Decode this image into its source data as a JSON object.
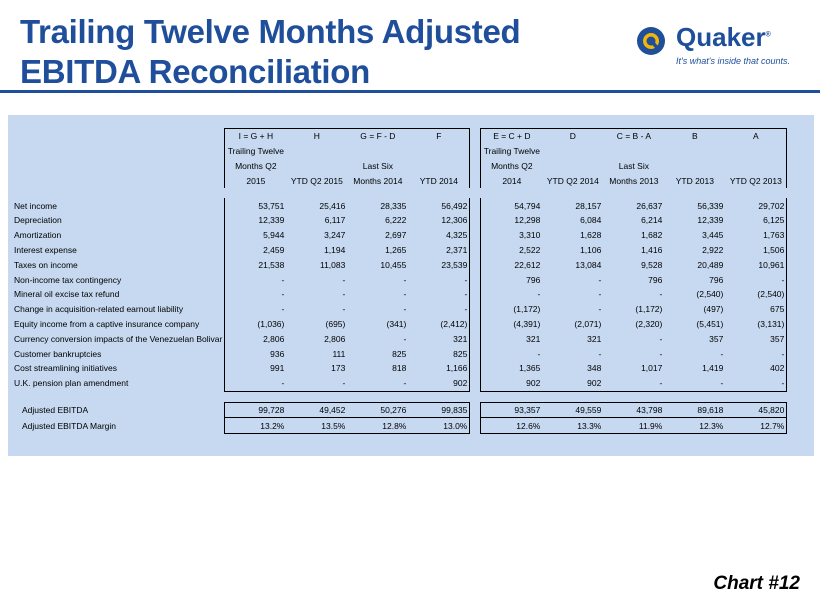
{
  "title": {
    "line1": "Trailing Twelve Months Adjusted",
    "line2": "EBITDA Reconciliation"
  },
  "logo": {
    "name": "Quaker",
    "registered": "®",
    "tagline": "It's what's inside that counts.",
    "brand_color": "#1f4e9b"
  },
  "table": {
    "formula_row": [
      "I = G + H",
      "H",
      "G = F - D",
      "F",
      "E = C + D",
      "D",
      "C = B - A",
      "B",
      "A"
    ],
    "header_row1": [
      "Trailing Twelve",
      "",
      "",
      "",
      "Trailing Twelve",
      "",
      "",
      "",
      ""
    ],
    "header_row2": [
      "Months Q2",
      "",
      "Last Six",
      "",
      "Months Q2",
      "",
      "Last Six",
      "",
      ""
    ],
    "header_row3": [
      "2015",
      "YTD Q2 2015",
      "Months 2014",
      "YTD 2014",
      "2014",
      "YTD Q2 2014",
      "Months 2013",
      "YTD 2013",
      "YTD Q2 2013"
    ],
    "rows": [
      {
        "label": "Net income",
        "values": [
          "53,751",
          "25,416",
          "28,335",
          "56,492",
          "54,794",
          "28,157",
          "26,637",
          "56,339",
          "29,702"
        ]
      },
      {
        "label": "Depreciation",
        "values": [
          "12,339",
          "6,117",
          "6,222",
          "12,306",
          "12,298",
          "6,084",
          "6,214",
          "12,339",
          "6,125"
        ]
      },
      {
        "label": "Amortization",
        "values": [
          "5,944",
          "3,247",
          "2,697",
          "4,325",
          "3,310",
          "1,628",
          "1,682",
          "3,445",
          "1,763"
        ]
      },
      {
        "label": "Interest expense",
        "values": [
          "2,459",
          "1,194",
          "1,265",
          "2,371",
          "2,522",
          "1,106",
          "1,416",
          "2,922",
          "1,506"
        ]
      },
      {
        "label": "Taxes on income",
        "values": [
          "21,538",
          "11,083",
          "10,455",
          "23,539",
          "22,612",
          "13,084",
          "9,528",
          "20,489",
          "10,961"
        ]
      },
      {
        "label": "Non-income tax contingency",
        "values": [
          "-",
          "-",
          "-",
          "-",
          "796",
          "-",
          "796",
          "796",
          "-"
        ]
      },
      {
        "label": "Mineral oil excise tax refund",
        "values": [
          "-",
          "-",
          "-",
          "-",
          "-",
          "-",
          "-",
          "(2,540)",
          "(2,540)"
        ]
      },
      {
        "label": "Change in acquisition-related earnout liability",
        "values": [
          "-",
          "-",
          "-",
          "-",
          "(1,172)",
          "-",
          "(1,172)",
          "(497)",
          "675"
        ]
      },
      {
        "label": "Equity income from a captive insurance company",
        "values": [
          "(1,036)",
          "(695)",
          "(341)",
          "(2,412)",
          "(4,391)",
          "(2,071)",
          "(2,320)",
          "(5,451)",
          "(3,131)"
        ]
      },
      {
        "label": "Currency conversion impacts of the Venezuelan Bolivar",
        "values": [
          "2,806",
          "2,806",
          "-",
          "321",
          "321",
          "321",
          "-",
          "357",
          "357"
        ]
      },
      {
        "label": "Customer bankruptcies",
        "values": [
          "936",
          "111",
          "825",
          "825",
          "-",
          "-",
          "-",
          "-",
          "-"
        ]
      },
      {
        "label": "Cost streamlining initiatives",
        "values": [
          "991",
          "173",
          "818",
          "1,166",
          "1,365",
          "348",
          "1,017",
          "1,419",
          "402"
        ]
      },
      {
        "label": "U.K. pension plan amendment",
        "values": [
          "-",
          "-",
          "-",
          "902",
          "902",
          "902",
          "-",
          "-",
          "-"
        ]
      }
    ],
    "totals": [
      {
        "label": "Adjusted EBITDA",
        "values": [
          "99,728",
          "49,452",
          "50,276",
          "99,835",
          "93,357",
          "49,559",
          "43,798",
          "89,618",
          "45,820"
        ]
      },
      {
        "label": "Adjusted EBITDA Margin",
        "values": [
          "13.2%",
          "13.5%",
          "12.8%",
          "13.0%",
          "12.6%",
          "13.3%",
          "11.9%",
          "12.3%",
          "12.7%"
        ]
      }
    ]
  },
  "footer": {
    "chart_number": "Chart #12"
  }
}
